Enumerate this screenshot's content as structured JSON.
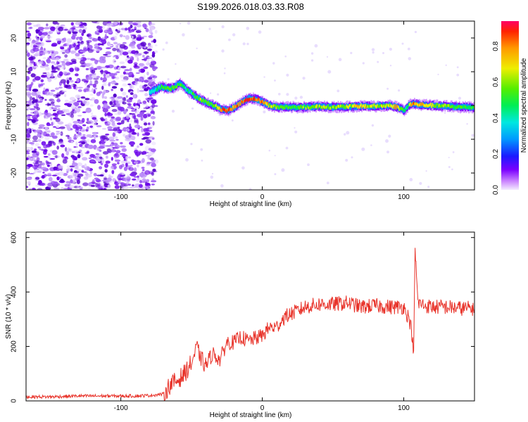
{
  "title": "S199.2026.018.03.33.R08",
  "chart_data": [
    {
      "type": "heatmap",
      "name": "spectrogram",
      "xlabel": "Height of straight line (km)",
      "ylabel": "Frequency (Hz)",
      "xlim": [
        -167,
        150
      ],
      "ylim": [
        -25,
        25
      ],
      "xticks": [
        -100,
        0,
        100
      ],
      "yticks": [
        -20,
        -10,
        0,
        10,
        20
      ],
      "colorbar": {
        "label": "Normalized spectral amplitude",
        "range": [
          0,
          0.94
        ],
        "ticks": [
          0.0,
          0.2,
          0.4,
          0.6,
          0.8
        ]
      },
      "noise_region": [
        -167,
        -75
      ],
      "ridge": {
        "x": [
          -80,
          -72,
          -65,
          -58,
          -52,
          -45,
          -40,
          -35,
          -30,
          -25,
          -20,
          -15,
          -10,
          -5,
          0,
          5,
          10,
          20,
          30,
          40,
          50,
          60,
          70,
          80,
          90,
          95,
          100,
          103,
          105,
          110,
          120,
          130,
          140,
          150
        ],
        "freq": [
          4,
          5.5,
          5,
          6.5,
          4,
          2,
          1,
          0,
          -1,
          -1.5,
          -0.5,
          1,
          2,
          2,
          1,
          0,
          -0.5,
          -0.5,
          -0.5,
          -0.3,
          -0.5,
          -0.3,
          -0.2,
          -0.2,
          0,
          -0.5,
          -1.5,
          0,
          0.5,
          0.3,
          0,
          -0.2,
          -0.5,
          -0.5
        ],
        "amplitude": [
          0.35,
          0.45,
          0.55,
          0.5,
          0.4,
          0.55,
          0.5,
          0.5,
          0.8,
          0.85,
          0.75,
          0.85,
          0.9,
          0.85,
          0.8,
          0.6,
          0.55,
          0.5,
          0.55,
          0.6,
          0.55,
          0.6,
          0.7,
          0.6,
          0.65,
          0.8,
          0.4,
          0.5,
          0.85,
          0.7,
          0.6,
          0.55,
          0.5,
          0.45
        ]
      }
    },
    {
      "type": "line",
      "name": "snr",
      "xlabel": "Height of straight line (km)",
      "ylabel": "SNR (10 * v/v)",
      "xlim": [
        -167,
        150
      ],
      "ylim": [
        0,
        620
      ],
      "xticks": [
        -100,
        0,
        100
      ],
      "yticks": [
        0,
        200,
        400,
        600
      ],
      "color": "#e8332a",
      "series": [
        {
          "name": "SNR",
          "x": [
            -167,
            -150,
            -130,
            -110,
            -90,
            -80,
            -70,
            -65,
            -60,
            -55,
            -50,
            -46,
            -44,
            -40,
            -35,
            -30,
            -25,
            -20,
            -15,
            -10,
            -5,
            0,
            5,
            10,
            15,
            20,
            25,
            30,
            40,
            50,
            60,
            70,
            80,
            90,
            100,
            104,
            106,
            107,
            108,
            110,
            115,
            120,
            130,
            140,
            150
          ],
          "y": [
            15,
            15,
            18,
            18,
            18,
            20,
            25,
            60,
            75,
            100,
            140,
            200,
            160,
            130,
            175,
            150,
            215,
            215,
            235,
            220,
            230,
            240,
            270,
            270,
            305,
            320,
            330,
            345,
            355,
            355,
            360,
            345,
            350,
            345,
            345,
            300,
            240,
            160,
            560,
            360,
            350,
            345,
            345,
            340,
            340
          ]
        }
      ]
    }
  ]
}
